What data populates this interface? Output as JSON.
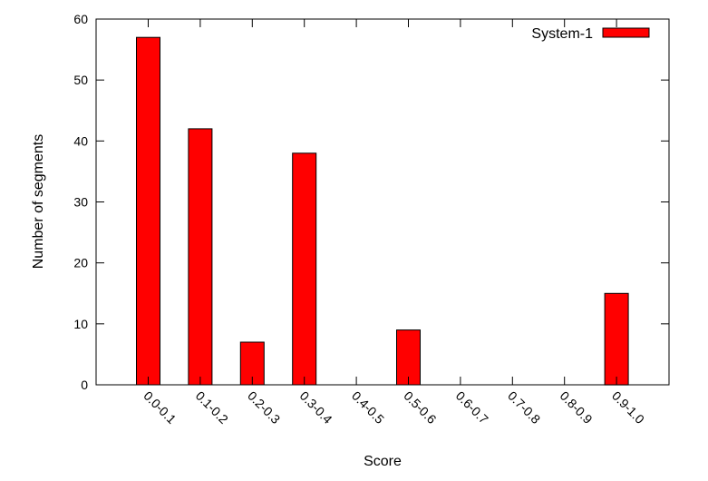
{
  "chart_data": {
    "type": "bar",
    "categories": [
      "0.0-0.1",
      "0.1-0.2",
      "0.2-0.3",
      "0.3-0.4",
      "0.4-0.5",
      "0.5-0.6",
      "0.6-0.7",
      "0.7-0.8",
      "0.8-0.9",
      "0.9-1.0"
    ],
    "series": [
      {
        "name": "System-1",
        "values": [
          57,
          42,
          7,
          38,
          0,
          9,
          0,
          0,
          0,
          15
        ],
        "color": "#ff0000"
      }
    ],
    "title": "",
    "xlabel": "Score",
    "ylabel": "Number of segments",
    "ylim": [
      0,
      60
    ],
    "yticks": [
      0,
      10,
      20,
      30,
      40,
      50,
      60
    ],
    "grid": false,
    "legend_position": "top-right"
  }
}
